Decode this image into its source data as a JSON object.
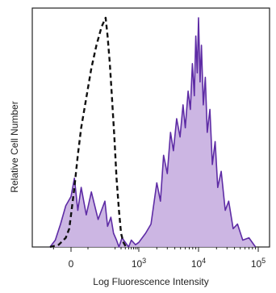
{
  "chart_data": {
    "type": "area",
    "title": "",
    "xlabel": "Log Fluorescence Intensity",
    "ylabel": "Relative Cell Number",
    "x_scale": "biexponential",
    "x_ticks": [
      {
        "value": 0,
        "base": "0",
        "exp": ""
      },
      {
        "value": 1000,
        "base": "10",
        "exp": "3"
      },
      {
        "value": 10000,
        "base": "10",
        "exp": "4"
      },
      {
        "value": 100000,
        "base": "10",
        "exp": "5"
      }
    ],
    "grid": false,
    "legend": "none",
    "series": [
      {
        "style": "dashed",
        "color": "#111111",
        "filled": false,
        "points": [
          [
            -60,
            0
          ],
          [
            -35,
            1
          ],
          [
            -15,
            4
          ],
          [
            -5,
            8
          ],
          [
            0,
            14
          ],
          [
            10,
            26
          ],
          [
            20,
            40
          ],
          [
            30,
            52
          ],
          [
            45,
            65
          ],
          [
            60,
            78
          ],
          [
            75,
            88
          ],
          [
            90,
            96
          ],
          [
            105,
            100
          ],
          [
            120,
            92
          ],
          [
            140,
            80
          ],
          [
            160,
            66
          ],
          [
            190,
            48
          ],
          [
            220,
            30
          ],
          [
            260,
            16
          ],
          [
            300,
            6
          ],
          [
            350,
            2
          ],
          [
            420,
            0
          ]
        ]
      },
      {
        "style": "solid",
        "color": "#5e2ca5",
        "fill": "#c7aee0",
        "filled": true,
        "points": [
          [
            -60,
            0
          ],
          [
            -45,
            3
          ],
          [
            -30,
            10
          ],
          [
            -15,
            18
          ],
          [
            0,
            22
          ],
          [
            10,
            30
          ],
          [
            20,
            16
          ],
          [
            30,
            26
          ],
          [
            45,
            14
          ],
          [
            60,
            24
          ],
          [
            80,
            12
          ],
          [
            100,
            20
          ],
          [
            120,
            9
          ],
          [
            150,
            13
          ],
          [
            180,
            6
          ],
          [
            220,
            3
          ],
          [
            260,
            0
          ],
          [
            320,
            4
          ],
          [
            400,
            2
          ],
          [
            500,
            0
          ],
          [
            600,
            3
          ],
          [
            800,
            1
          ],
          [
            1000,
            2
          ],
          [
            1300,
            6
          ],
          [
            1600,
            10
          ],
          [
            2000,
            28
          ],
          [
            2300,
            20
          ],
          [
            2600,
            40
          ],
          [
            3000,
            32
          ],
          [
            3400,
            50
          ],
          [
            3800,
            42
          ],
          [
            4300,
            56
          ],
          [
            4900,
            48
          ],
          [
            5500,
            62
          ],
          [
            6000,
            52
          ],
          [
            6700,
            68
          ],
          [
            7300,
            60
          ],
          [
            7900,
            80
          ],
          [
            8500,
            66
          ],
          [
            9000,
            92
          ],
          [
            9500,
            76
          ],
          [
            10000,
            100
          ],
          [
            10600,
            72
          ],
          [
            11200,
            88
          ],
          [
            12000,
            62
          ],
          [
            13000,
            74
          ],
          [
            14000,
            50
          ],
          [
            15500,
            60
          ],
          [
            17000,
            36
          ],
          [
            19000,
            46
          ],
          [
            21000,
            26
          ],
          [
            24000,
            33
          ],
          [
            28000,
            16
          ],
          [
            32000,
            20
          ],
          [
            38000,
            8
          ],
          [
            45000,
            10
          ],
          [
            55000,
            3
          ],
          [
            70000,
            4
          ],
          [
            90000,
            0
          ]
        ]
      }
    ]
  }
}
